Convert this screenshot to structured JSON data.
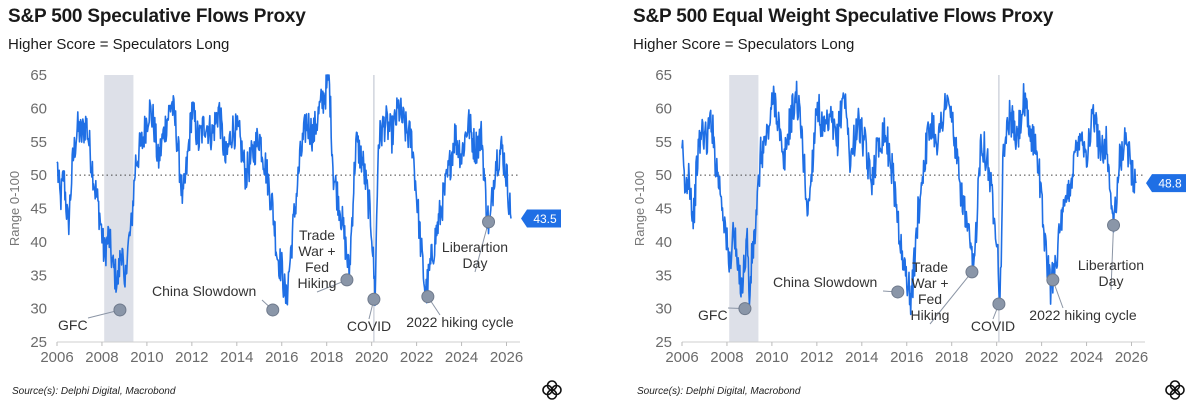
{
  "source_text": "Source(s): Delphi Digital, Macrobond",
  "colors": {
    "line": "#1f6fe5",
    "marker": "#8a96a8",
    "shade": "#dde0e8",
    "label_bg": "#1f6fe5"
  },
  "chart_data": [
    {
      "type": "line",
      "title": "S&P 500 Speculative Flows Proxy",
      "subtitle": "Higher Score = Speculators Long",
      "ylabel": "Range 0-100",
      "xlabel": "",
      "xlim": [
        2006,
        2026.6
      ],
      "ylim": [
        25,
        65
      ],
      "xticks": [
        "2006",
        "2008",
        "2010",
        "2012",
        "2014",
        "2016",
        "2018",
        "2020",
        "2022",
        "2024",
        "2026"
      ],
      "yticks": [
        "25",
        "30",
        "35",
        "40",
        "45",
        "50",
        "55",
        "60",
        "65"
      ],
      "reference_line": 50,
      "shaded_range": [
        2008.1,
        2009.4
      ],
      "vertical_line": 2020.1,
      "last_value_label": "43.5",
      "last_value": 43.5,
      "series": [
        {
          "name": "Speculative Flows Proxy",
          "x": [
            2006.0,
            2006.15,
            2006.3,
            2006.5,
            2006.7,
            2006.9,
            2007.1,
            2007.3,
            2007.5,
            2007.7,
            2007.9,
            2008.1,
            2008.3,
            2008.5,
            2008.7,
            2008.9,
            2009.0,
            2009.1,
            2009.3,
            2009.5,
            2009.8,
            2010.1,
            2010.3,
            2010.5,
            2010.8,
            2011.1,
            2011.3,
            2011.6,
            2011.8,
            2012.0,
            2012.3,
            2012.6,
            2012.9,
            2013.2,
            2013.5,
            2013.8,
            2014.1,
            2014.4,
            2014.7,
            2015.0,
            2015.3,
            2015.6,
            2015.8,
            2016.0,
            2016.2,
            2016.5,
            2016.8,
            2017.1,
            2017.4,
            2017.7,
            2018.0,
            2018.1,
            2018.3,
            2018.6,
            2018.9,
            2019.0,
            2019.3,
            2019.6,
            2019.9,
            2020.0,
            2020.15,
            2020.3,
            2020.6,
            2020.9,
            2021.2,
            2021.5,
            2021.8,
            2022.0,
            2022.2,
            2022.4,
            2022.6,
            2022.8,
            2023.1,
            2023.4,
            2023.7,
            2024.0,
            2024.3,
            2024.6,
            2024.9,
            2025.1,
            2025.25,
            2025.5,
            2025.8,
            2026.0,
            2026.2
          ],
          "values": [
            52,
            46,
            50,
            42,
            52,
            57,
            56,
            58,
            53,
            48,
            44,
            38,
            41,
            36,
            34,
            40,
            31,
            38,
            42,
            52,
            55,
            60,
            58,
            52,
            57,
            61,
            57,
            46,
            52,
            60,
            55,
            58,
            56,
            60,
            52,
            57,
            56,
            50,
            53,
            56,
            51,
            45,
            38,
            36,
            31,
            42,
            52,
            58,
            56,
            60,
            63,
            65,
            50,
            45,
            38,
            35,
            55,
            52,
            45,
            42,
            32,
            55,
            58,
            56,
            60,
            57,
            55,
            47,
            39,
            32,
            36,
            40,
            45,
            50,
            56,
            53,
            58,
            54,
            56,
            45,
            42,
            52,
            54,
            50,
            43.5
          ]
        }
      ],
      "annotations": [
        {
          "lines": [
            "GFC"
          ],
          "x": 2008.8,
          "y": 29.8
        },
        {
          "lines": [
            "China Slowdown"
          ],
          "x": 2015.6,
          "y": 29.8
        },
        {
          "lines": [
            "Trade",
            "War +",
            "Fed",
            "Hiking"
          ],
          "x": 2018.9,
          "y": 34.3
        },
        {
          "lines": [
            "COVID"
          ],
          "x": 2020.1,
          "y": 31.4
        },
        {
          "lines": [
            "2022 hiking cycle"
          ],
          "x": 2022.5,
          "y": 31.8
        },
        {
          "lines": [
            "Liberartion",
            "Day"
          ],
          "x": 2025.2,
          "y": 43
        }
      ]
    },
    {
      "type": "line",
      "title": "S&P 500 Equal Weight Speculative Flows Proxy",
      "subtitle": "Higher Score = Speculators Long",
      "ylabel": "Range 0-100",
      "xlabel": "",
      "xlim": [
        2006,
        2026.6
      ],
      "ylim": [
        25,
        65
      ],
      "xticks": [
        "2006",
        "2008",
        "2010",
        "2012",
        "2014",
        "2016",
        "2018",
        "2020",
        "2022",
        "2024",
        "2026"
      ],
      "yticks": [
        "25",
        "30",
        "35",
        "40",
        "45",
        "50",
        "55",
        "60",
        "65"
      ],
      "reference_line": 50,
      "shaded_range": [
        2008.1,
        2009.4
      ],
      "vertical_line": 2020.1,
      "last_value_label": "48.8",
      "last_value": 48.8,
      "series": [
        {
          "name": "Equal Weight Speculative Flows Proxy",
          "x": [
            2006.0,
            2006.15,
            2006.3,
            2006.5,
            2006.7,
            2006.9,
            2007.1,
            2007.3,
            2007.5,
            2007.7,
            2007.9,
            2008.1,
            2008.3,
            2008.5,
            2008.7,
            2008.9,
            2009.0,
            2009.1,
            2009.3,
            2009.5,
            2009.8,
            2010.1,
            2010.3,
            2010.5,
            2010.8,
            2011.1,
            2011.3,
            2011.6,
            2011.8,
            2012.0,
            2012.3,
            2012.6,
            2012.9,
            2013.2,
            2013.5,
            2013.8,
            2014.1,
            2014.4,
            2014.7,
            2015.0,
            2015.3,
            2015.6,
            2015.8,
            2016.0,
            2016.2,
            2016.5,
            2016.8,
            2017.1,
            2017.4,
            2017.7,
            2018.0,
            2018.3,
            2018.6,
            2018.9,
            2019.0,
            2019.3,
            2019.6,
            2019.9,
            2020.0,
            2020.15,
            2020.3,
            2020.6,
            2020.9,
            2021.2,
            2021.5,
            2021.8,
            2022.0,
            2022.2,
            2022.4,
            2022.6,
            2022.8,
            2023.1,
            2023.4,
            2023.7,
            2024.0,
            2024.3,
            2024.6,
            2024.9,
            2025.1,
            2025.25,
            2025.5,
            2025.8,
            2026.0,
            2026.2
          ],
          "values": [
            54,
            47,
            51,
            43,
            53,
            57,
            55,
            59,
            52,
            48,
            43,
            36,
            42,
            35,
            34,
            41,
            31,
            37,
            43,
            53,
            56,
            62,
            58,
            51,
            58,
            62,
            57,
            44,
            52,
            61,
            56,
            58,
            55,
            63,
            52,
            58,
            55,
            49,
            54,
            57,
            52,
            44,
            37,
            35,
            31,
            44,
            53,
            58,
            55,
            61,
            59,
            50,
            44,
            37,
            36,
            56,
            52,
            44,
            42,
            31,
            54,
            59,
            55,
            61,
            56,
            54,
            46,
            38,
            33,
            37,
            41,
            46,
            51,
            57,
            53,
            59,
            54,
            55,
            45,
            43,
            53,
            55,
            51,
            48.8
          ]
        }
      ],
      "annotations": [
        {
          "lines": [
            "GFC"
          ],
          "x": 2008.8,
          "y": 30
        },
        {
          "lines": [
            "China Slowdown"
          ],
          "x": 2015.6,
          "y": 32.5
        },
        {
          "lines": [
            "Trade",
            "War +",
            "Fed",
            "Hiking"
          ],
          "x": 2018.9,
          "y": 35.5
        },
        {
          "lines": [
            "COVID"
          ],
          "x": 2020.1,
          "y": 30.7
        },
        {
          "lines": [
            "2022 hiking cycle"
          ],
          "x": 2022.5,
          "y": 34.3
        },
        {
          "lines": [
            "Liberartion",
            "Day"
          ],
          "x": 2025.2,
          "y": 42.5
        }
      ]
    }
  ]
}
